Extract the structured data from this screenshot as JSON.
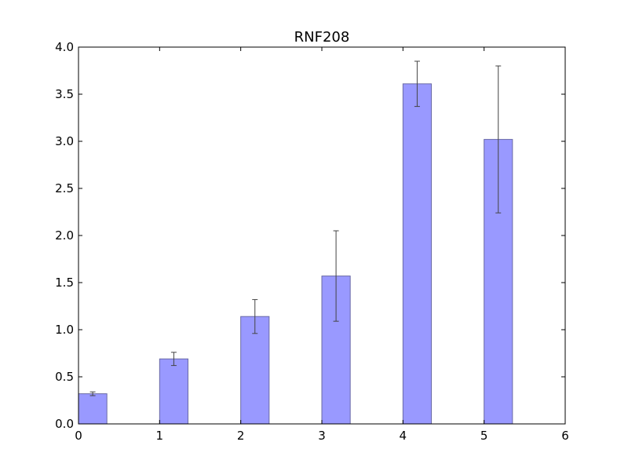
{
  "chart_data": {
    "type": "bar",
    "title": "RNF208",
    "xlabel": "",
    "ylabel": "",
    "x": [
      0,
      1,
      2,
      3,
      4,
      5
    ],
    "values": [
      0.32,
      0.69,
      1.14,
      1.57,
      3.61,
      3.02
    ],
    "errors": [
      0.02,
      0.07,
      0.18,
      0.48,
      0.24,
      0.78
    ],
    "bar_width": 0.35,
    "xlim": [
      0,
      6
    ],
    "ylim": [
      0,
      4
    ],
    "xticks": [
      "0",
      "1",
      "2",
      "3",
      "4",
      "5",
      "6"
    ],
    "yticks": [
      "0.0",
      "0.5",
      "1.0",
      "1.5",
      "2.0",
      "2.5",
      "3.0",
      "3.5",
      "4.0"
    ],
    "grid": false,
    "colors": {
      "bar_fill": "#9999ff",
      "bar_edge": "#6a6aa6",
      "error": "#444444"
    }
  }
}
